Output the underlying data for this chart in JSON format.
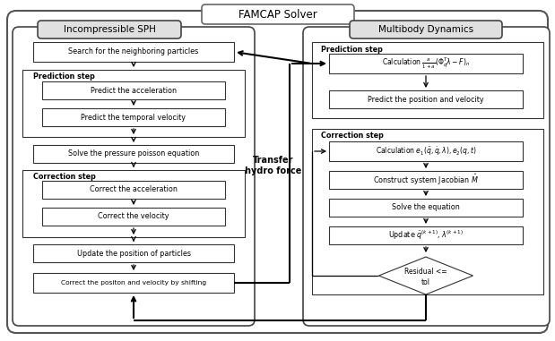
{
  "title": "FAMCAP Solver",
  "sph_title": "Incompressible SPH",
  "mbd_title": "Multibody Dynamics",
  "transfer_label": "Transfer\nhydro force",
  "bg_color": "#ffffff",
  "fig_w": 6.19,
  "fig_h": 3.81,
  "dpi": 100
}
